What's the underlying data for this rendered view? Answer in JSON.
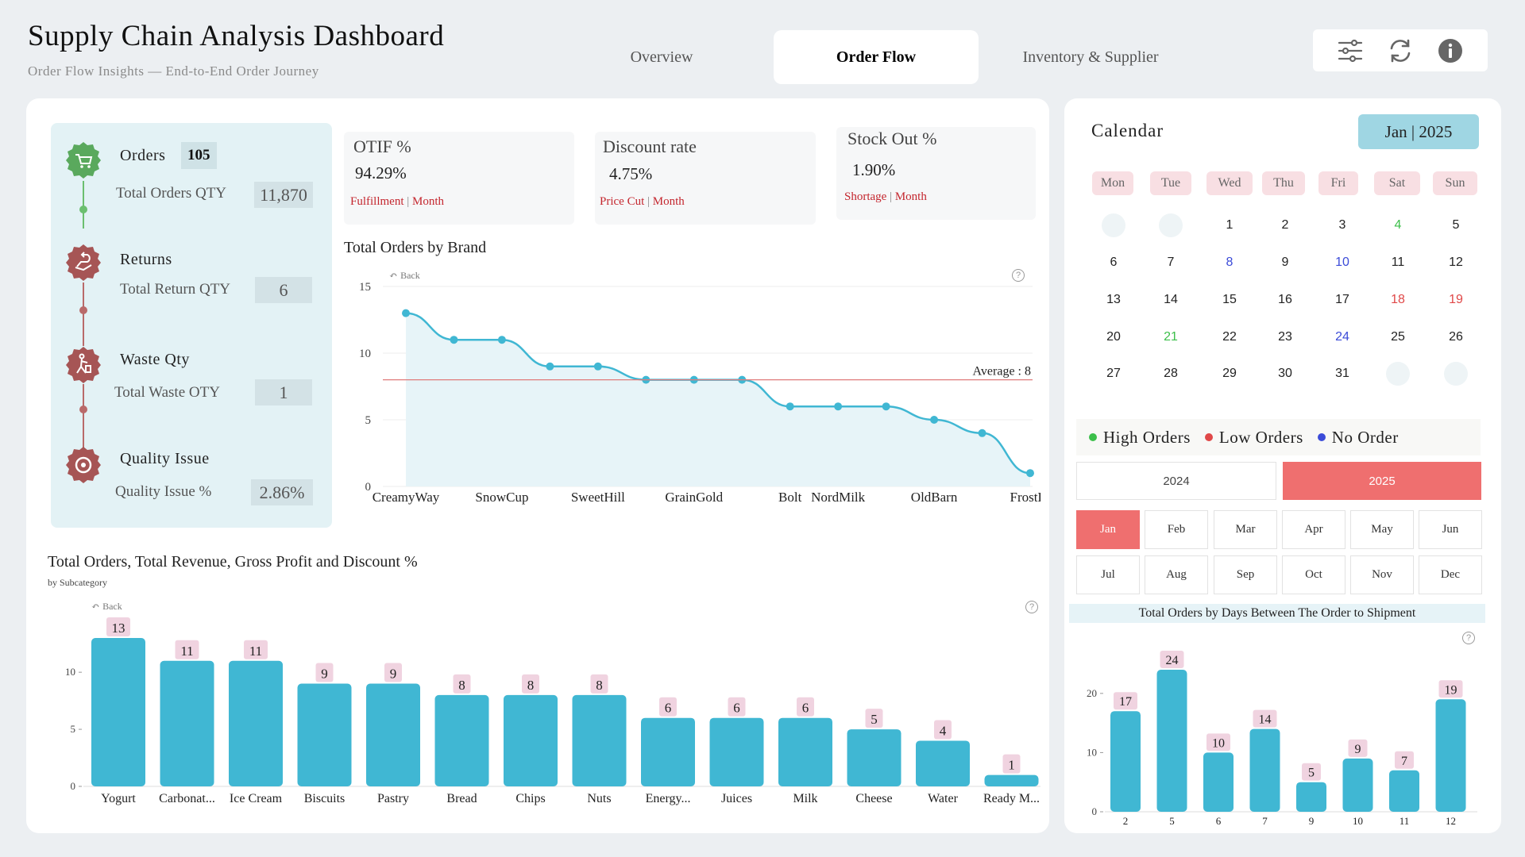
{
  "header": {
    "title": "Supply Chain Analysis Dashboard",
    "subtitle": "Order Flow Insights — End-to-End Order Journey",
    "tabs": [
      "Overview",
      "Order Flow",
      "Inventory & Supplier"
    ],
    "active_tab": "Order Flow",
    "toolbar_icons": [
      "filter-sliders-icon",
      "refresh-icon",
      "info-icon"
    ]
  },
  "kpi_sidebar": {
    "orders_label": "Orders",
    "orders_count": "105",
    "total_orders_label": "Total Orders QTY",
    "total_orders_value": "11,870",
    "returns_label": "Returns",
    "total_return_label": "Total Return QTY",
    "total_return_value": "6",
    "waste_label": "Waste Qty",
    "total_waste_label": "Total Waste OTY",
    "total_waste_value": "1",
    "quality_label": "Quality Issue",
    "quality_pct_label": "Quality Issue %",
    "quality_pct_value": "2.86%"
  },
  "kpi_cards": [
    {
      "title": "OTIF %",
      "value": "94.29%",
      "foot_a": "Fulfillment",
      "foot_b": "Month"
    },
    {
      "title": "Discount rate",
      "value": "4.75%",
      "foot_a": "Price Cut",
      "foot_b": "Month"
    },
    {
      "title": "Stock Out %",
      "value": "1.90%",
      "foot_a": "Shortage",
      "foot_b": "Month"
    }
  ],
  "brand_chart": {
    "title": "Total Orders by Brand",
    "back_label": "Back",
    "help_label": "?",
    "average_label": "Average : 8"
  },
  "subcat_chart": {
    "title": "Total Orders, Total Revenue, Gross Profit and Discount %",
    "subtitle": "by Subcategory",
    "back_label": "Back",
    "help_label": "?"
  },
  "calendar": {
    "title": "Calendar",
    "month_label": "Jan | 2025",
    "weekdays": [
      "Mon",
      "Tue",
      "Wed",
      "Thu",
      "Fri",
      "Sat",
      "Sun"
    ],
    "legend": [
      "High Orders",
      "Low Orders",
      "No Order"
    ],
    "years": [
      "2024",
      "2025"
    ],
    "selected_year": "2025",
    "months": [
      "Jan",
      "Feb",
      "Mar",
      "Apr",
      "May",
      "Jun",
      "Jul",
      "Aug",
      "Sep",
      "Oct",
      "Nov",
      "Dec"
    ],
    "selected_month": "Jan",
    "ship_title": "Total Orders by Days Between The Order to Shipment",
    "help_label": "?"
  },
  "colors": {
    "accent": "#40b7d3",
    "selected": "#ef6f6f",
    "high": "#3cbf4a",
    "low": "#e04848",
    "none": "#3b4bd8",
    "average_line": "#e07b7b",
    "label_bg": "#f0d3e0"
  },
  "chart_data": [
    {
      "type": "area",
      "title": "Total Orders by Brand",
      "categories": [
        "CreamyWay",
        "",
        "SnowCup",
        "",
        "SweetHill",
        "",
        "GrainGold",
        "",
        "Bolt",
        "NordMilk",
        "",
        "OldBarn",
        "",
        "FrostBi"
      ],
      "values": [
        13,
        11,
        11,
        9,
        9,
        8,
        8,
        8,
        6,
        6,
        6,
        5,
        4,
        1
      ],
      "ylim": [
        0,
        15
      ],
      "yticks": [
        0,
        5,
        10,
        15
      ],
      "average": 8
    },
    {
      "type": "bar",
      "title": "Total Orders, Total Revenue, Gross Profit and Discount %",
      "categories": [
        "Yogurt",
        "Carbonat...",
        "Ice Cream",
        "Biscuits",
        "Pastry",
        "Bread",
        "Chips",
        "Nuts",
        "Energy...",
        "Juices",
        "Milk",
        "Cheese",
        "Water",
        "Ready M..."
      ],
      "values": [
        13,
        11,
        11,
        9,
        9,
        8,
        8,
        8,
        6,
        6,
        6,
        5,
        4,
        1
      ],
      "ylim": [
        0,
        13
      ],
      "yticks": [
        0,
        5,
        10
      ]
    },
    {
      "type": "bar",
      "title": "Total Orders by Days Between The Order to Shipment",
      "categories": [
        "2",
        "5",
        "6",
        "7",
        "9",
        "10",
        "11",
        "12"
      ],
      "values": [
        17,
        24,
        10,
        14,
        5,
        9,
        7,
        19
      ],
      "ylim": [
        0,
        24
      ],
      "yticks": [
        0,
        10,
        20
      ]
    }
  ]
}
